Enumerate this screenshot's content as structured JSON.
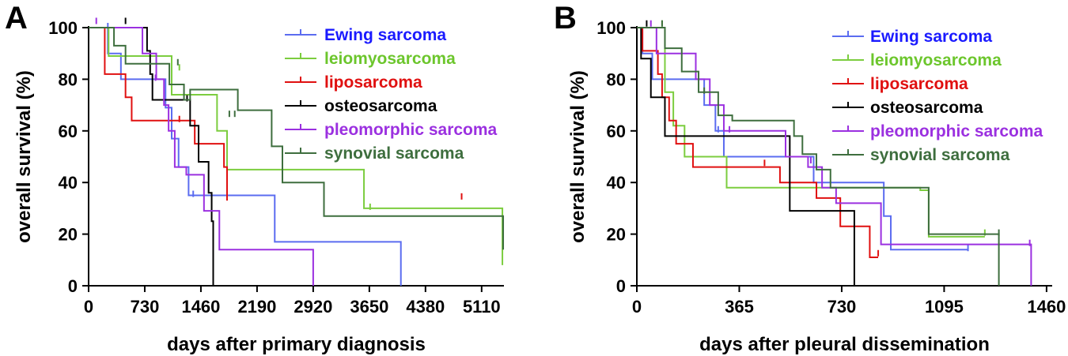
{
  "chart_data": [
    {
      "type": "line",
      "subtype": "kaplan-meier",
      "panel": "A",
      "xlabel": "days after primary diagnosis",
      "ylabel": "overall survival (%)",
      "xlim": [
        0,
        5400
      ],
      "ylim": [
        0,
        100
      ],
      "xticks": [
        0,
        730,
        1460,
        2190,
        2920,
        3650,
        4380,
        5110
      ],
      "yticks": [
        0,
        20,
        40,
        60,
        80,
        100
      ],
      "legend_position": "top-right",
      "series": [
        {
          "name": "Ewing sarcoma",
          "color": "#5b6cf0",
          "legend_color": "#1a1aff",
          "steps": [
            [
              0,
              100
            ],
            [
              250,
              90
            ],
            [
              420,
              80
            ],
            [
              1000,
              69
            ],
            [
              1080,
              57
            ],
            [
              1170,
              46
            ],
            [
              1300,
              35
            ],
            [
              2420,
              17
            ],
            [
              4060,
              0
            ]
          ],
          "censored": [
            [
              250,
              100
            ],
            [
              1360,
              35
            ]
          ]
        },
        {
          "name": "leiomyosarcoma",
          "color": "#7ccd3f",
          "legend_color": "#6cc62c",
          "steps": [
            [
              0,
              100
            ],
            [
              260,
              89
            ],
            [
              1080,
              74
            ],
            [
              1670,
              60
            ],
            [
              1800,
              45
            ],
            [
              3580,
              30
            ],
            [
              5380,
              8
            ]
          ],
          "censored": [
            [
              1180,
              84
            ],
            [
              3660,
              30
            ]
          ]
        },
        {
          "name": "liposarcoma",
          "color": "#e01010",
          "legend_color": "#e01010",
          "steps": [
            [
              0,
              100
            ],
            [
              210,
              82
            ],
            [
              480,
              73
            ],
            [
              560,
              64
            ],
            [
              1380,
              55
            ],
            [
              1760,
              46
            ],
            [
              1800,
              33
            ]
          ],
          "censored": [
            [
              1180,
              64
            ],
            [
              4850,
              34
            ]
          ]
        },
        {
          "name": "osteosarcoma",
          "color": "#000000",
          "legend_color": "#000000",
          "steps": [
            [
              0,
              100
            ],
            [
              760,
              91
            ],
            [
              800,
              82
            ],
            [
              830,
              72
            ],
            [
              1320,
              62
            ],
            [
              1430,
              48
            ],
            [
              1560,
              36
            ],
            [
              1600,
              25
            ],
            [
              1620,
              0
            ]
          ],
          "censored": [
            [
              480,
              102
            ],
            [
              1280,
              72
            ]
          ]
        },
        {
          "name": "pleomorphic sarcoma",
          "color": "#9b30e0",
          "legend_color": "#9b30e0",
          "steps": [
            [
              0,
              100
            ],
            [
              700,
              90
            ],
            [
              880,
              80
            ],
            [
              980,
              70
            ],
            [
              1040,
              60
            ],
            [
              1120,
              46
            ],
            [
              1270,
              43
            ],
            [
              1500,
              29
            ],
            [
              1700,
              14
            ],
            [
              2920,
              0
            ]
          ],
          "censored": [
            [
              100,
              102
            ],
            [
              870,
              80
            ]
          ]
        },
        {
          "name": "synovial sarcoma",
          "color": "#3e6e3e",
          "legend_color": "#3e6e3e",
          "steps": [
            [
              0,
              100
            ],
            [
              330,
              93
            ],
            [
              480,
              86
            ],
            [
              1050,
              78
            ],
            [
              1240,
              72
            ],
            [
              1320,
              76
            ],
            [
              1940,
              68
            ],
            [
              2380,
              54
            ],
            [
              2520,
              40
            ],
            [
              3060,
              27
            ],
            [
              5390,
              14
            ]
          ],
          "censored": [
            [
              1160,
              86
            ],
            [
              1830,
              66
            ],
            [
              1900,
              66
            ]
          ]
        }
      ]
    },
    {
      "type": "line",
      "subtype": "kaplan-meier",
      "panel": "B",
      "xlabel": "days after pleural dissemination",
      "ylabel": "overall survival (%)",
      "xlim": [
        0,
        1480
      ],
      "ylim": [
        0,
        100
      ],
      "xticks": [
        0,
        365,
        730,
        1095,
        1460
      ],
      "yticks": [
        0,
        20,
        40,
        60,
        80,
        100
      ],
      "legend_position": "top-right",
      "series": [
        {
          "name": "Ewing sarcoma",
          "color": "#5b6cf0",
          "legend_color": "#1a1aff",
          "steps": [
            [
              0,
              100
            ],
            [
              20,
              90
            ],
            [
              55,
              80
            ],
            [
              240,
              70
            ],
            [
              280,
              60
            ],
            [
              310,
              50
            ],
            [
              630,
              40
            ],
            [
              880,
              27
            ],
            [
              905,
              14
            ],
            [
              1180,
              14
            ]
          ],
          "censored": [
            [
              290,
              60
            ],
            [
              1180,
              14
            ]
          ]
        },
        {
          "name": "leiomyosarcoma",
          "color": "#7ccd3f",
          "legend_color": "#6cc62c",
          "steps": [
            [
              0,
              100
            ],
            [
              100,
              75
            ],
            [
              130,
              62
            ],
            [
              170,
              50
            ],
            [
              320,
              38
            ],
            [
              1010,
              37
            ],
            [
              1040,
              19
            ],
            [
              1240,
              19
            ]
          ],
          "censored": [
            [
              90,
              101
            ],
            [
              1240,
              20
            ]
          ]
        },
        {
          "name": "liposarcoma",
          "color": "#e01010",
          "legend_color": "#e01010",
          "steps": [
            [
              0,
              100
            ],
            [
              20,
              91
            ],
            [
              75,
              82
            ],
            [
              90,
              73
            ],
            [
              115,
              64
            ],
            [
              140,
              55
            ],
            [
              200,
              46
            ],
            [
              455,
              46
            ],
            [
              510,
              40
            ],
            [
              640,
              34
            ],
            [
              725,
              23
            ],
            [
              830,
              11
            ],
            [
              860,
              11
            ]
          ],
          "censored": [
            [
              455,
              47
            ],
            [
              860,
              12
            ]
          ]
        },
        {
          "name": "osteosarcoma",
          "color": "#000000",
          "legend_color": "#000000",
          "steps": [
            [
              0,
              100
            ],
            [
              15,
              88
            ],
            [
              50,
              73
            ],
            [
              100,
              58
            ],
            [
              535,
              58
            ],
            [
              545,
              29
            ],
            [
              775,
              0
            ]
          ],
          "censored": [
            [
              35,
              101
            ]
          ]
        },
        {
          "name": "pleomorphic sarcoma",
          "color": "#9b30e0",
          "legend_color": "#9b30e0",
          "steps": [
            [
              0,
              100
            ],
            [
              70,
              90
            ],
            [
              210,
              80
            ],
            [
              260,
              70
            ],
            [
              310,
              60
            ],
            [
              530,
              50
            ],
            [
              610,
              46
            ],
            [
              660,
              38
            ],
            [
              710,
              32
            ],
            [
              870,
              16
            ],
            [
              1405,
              0
            ]
          ],
          "censored": [
            [
              50,
              101
            ],
            [
              330,
              60
            ],
            [
              620,
              48
            ],
            [
              1400,
              16
            ]
          ]
        },
        {
          "name": "synovial sarcoma",
          "color": "#3e6e3e",
          "legend_color": "#3e6e3e",
          "steps": [
            [
              0,
              100
            ],
            [
              100,
              92
            ],
            [
              160,
              83
            ],
            [
              220,
              75
            ],
            [
              290,
              66
            ],
            [
              340,
              64
            ],
            [
              560,
              58
            ],
            [
              590,
              51
            ],
            [
              640,
              45
            ],
            [
              690,
              38
            ],
            [
              1040,
              20
            ],
            [
              1290,
              0
            ]
          ],
          "censored": [
            [
              90,
              101
            ],
            [
              240,
              75
            ],
            [
              1290,
              20
            ]
          ]
        }
      ]
    }
  ]
}
